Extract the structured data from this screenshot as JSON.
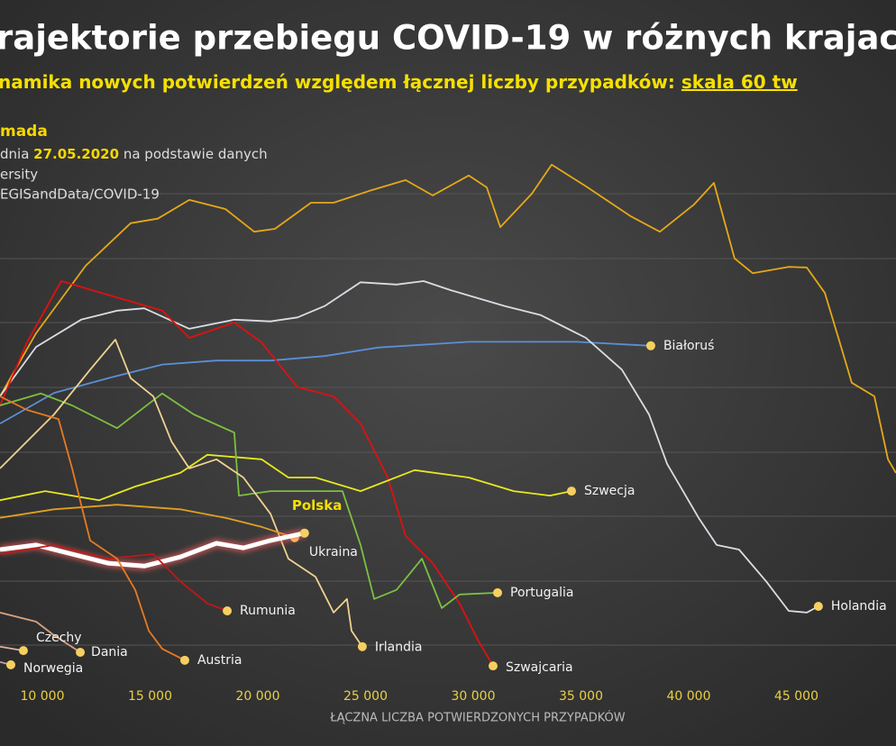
{
  "chart_data": {
    "type": "line",
    "title": "rajektorie przebiegu COVID-19 w różnych krajac",
    "subtitle": "namika nowych potwierdzeń względem łącznej liczby przypadków: ",
    "subtitle_link": "skala 60 tw",
    "notes": {
      "author": "mada",
      "line_prefix": "dnia ",
      "date": "27.05.2020",
      "line_suffix": " na podstawie danych",
      "source_1": "ersity",
      "source_2": "EGISandData/COVID-19"
    },
    "x_label": "ŁĄCZNA LICZBA POTWIERDZONYCH PRZYPADKÓW",
    "xlim": [
      8034,
      49623
    ],
    "ylim": [
      0,
      100
    ],
    "xticks": [
      {
        "value": 10000,
        "label": "10 000"
      },
      {
        "value": 15000,
        "label": "15 000"
      },
      {
        "value": 20000,
        "label": "20 000"
      },
      {
        "value": 25000,
        "label": "25 000"
      },
      {
        "value": 30000,
        "label": "30 000"
      },
      {
        "value": 35000,
        "label": "35 000"
      },
      {
        "value": 40000,
        "label": "40 000"
      },
      {
        "value": 45000,
        "label": "45 000"
      }
    ],
    "series": [
      {
        "color": "#e6a817",
        "x": [
          8034,
          9708,
          12009,
          14100,
          15356,
          16820,
          18494,
          19833,
          20795,
          22469,
          23515,
          25188,
          26862,
          28117,
          29790,
          30627,
          31254,
          32720,
          33640,
          35230,
          37320,
          38660,
          40250,
          41170,
          42130,
          42970,
          44640,
          45480,
          46320,
          46950,
          47570,
          48620,
          49250,
          49620
        ],
        "values": [
          52.4,
          63.5,
          75.4,
          82.9,
          83.7,
          87,
          85.4,
          81.4,
          81.9,
          86.5,
          86.5,
          88.6,
          90.5,
          87.8,
          91.3,
          89.2,
          82.2,
          88.1,
          93.2,
          89.4,
          84.1,
          81.4,
          86.2,
          90,
          76.7,
          74.1,
          75.2,
          75.1,
          70.6,
          62.7,
          54.8,
          52.4,
          41.3,
          38.9
        ]
      },
      {
        "name": "Białoruś",
        "color": "#5b8fd6",
        "x": [
          8034,
          10544,
          13054,
          15565,
          18076,
          20586,
          23100,
          25600,
          29800,
          34800,
          38240
        ],
        "values": [
          47.6,
          53,
          55.6,
          58,
          58.7,
          58.7,
          59.5,
          61,
          62,
          62,
          61.3
        ]
      },
      {
        "name": "Holandia",
        "color": "#d9dde3",
        "x": [
          8034,
          9708,
          11800,
          13470,
          14730,
          16820,
          18910,
          20590,
          21840,
          23100,
          24770,
          26440,
          27700,
          28960,
          31470,
          33140,
          35230,
          36900,
          38160,
          39000,
          40460,
          41300,
          42340,
          43600,
          44640,
          45480,
          46020
        ],
        "values": [
          52.4,
          61.1,
          65.9,
          67.5,
          67.9,
          64.3,
          65.9,
          65.6,
          66.3,
          68.3,
          72.5,
          72.1,
          72.7,
          71.1,
          68.3,
          66.7,
          62.7,
          57.1,
          49.2,
          40.5,
          31,
          26.2,
          25.4,
          19.8,
          14.6,
          14.3,
          15.4
        ]
      },
      {
        "name": "Szwajcaria",
        "color": "#e01010",
        "x": [
          8034,
          9290,
          10880,
          13470,
          15565,
          16820,
          18910,
          20170,
          21840,
          23515,
          24770,
          26030,
          26860,
          28120,
          29370,
          30210,
          30920
        ],
        "values": [
          50.8,
          61.9,
          72.7,
          69.8,
          67.5,
          62.7,
          65.4,
          61.9,
          54,
          52.4,
          47.6,
          38.1,
          27.8,
          23,
          15.9,
          9.5,
          4.9
        ]
      },
      {
        "name": "Szwecja",
        "color": "#e8e820",
        "x": [
          8034,
          10130,
          12640,
          14310,
          16400,
          17660,
          20170,
          21420,
          22680,
          24770,
          27280,
          29790,
          31880,
          33560,
          34560
        ],
        "values": [
          34.1,
          35.7,
          34.1,
          36.5,
          38.9,
          42.1,
          41.3,
          38.1,
          38.1,
          35.7,
          39.4,
          38.1,
          35.7,
          34.9,
          35.7
        ]
      },
      {
        "name": "Portugalia",
        "color": "#7cc040",
        "x": [
          8034,
          9920,
          11380,
          13470,
          15565,
          17030,
          18910,
          19120,
          20590,
          22680,
          23930,
          24770,
          25400,
          26440,
          27620,
          28540,
          29370,
          31130
        ],
        "values": [
          50.8,
          52.9,
          50.8,
          46.8,
          52.9,
          49.2,
          46,
          34.9,
          35.7,
          35.7,
          35.7,
          26.2,
          16.7,
          18.3,
          23.8,
          15.1,
          17.5,
          17.8
        ]
      },
      {
        "name": "Irlandia",
        "color": "#f0d290",
        "x": [
          8034,
          10540,
          12220,
          13390,
          14100,
          15150,
          16000,
          16820,
          18080,
          19330,
          20590,
          21420,
          22680,
          23520,
          24140,
          24350,
          24850
        ],
        "values": [
          39.7,
          49.2,
          57.1,
          62.4,
          55.6,
          52.4,
          44.4,
          39.7,
          41.3,
          38.1,
          31.7,
          23.8,
          20.6,
          14.3,
          16.7,
          11.1,
          8.3
        ]
      },
      {
        "name": "Ukraina",
        "color": "#e0a020",
        "x": [
          8034,
          10540,
          13470,
          16400,
          18490,
          20170,
          21710
        ],
        "values": [
          31,
          32.5,
          33.3,
          32.5,
          31,
          29.4,
          27.5
        ]
      },
      {
        "name": "Polska",
        "color": "#ffffff",
        "x": [
          8034,
          9710,
          11380,
          13050,
          14730,
          16400,
          18080,
          19330,
          20590,
          22170
        ],
        "values": [
          25.4,
          26.2,
          24.6,
          23,
          22.5,
          24.1,
          26.5,
          25.7,
          27,
          28.3
        ]
      },
      {
        "name": "Rumunia",
        "color": "#c01818",
        "x": [
          8034,
          10540,
          13050,
          15150,
          16400,
          17660,
          18580
        ],
        "values": [
          24.6,
          26.2,
          23.8,
          24.6,
          19.8,
          15.9,
          14.6
        ]
      },
      {
        "name": "Austria",
        "color": "#e87a20",
        "x": [
          8034,
          9290,
          10750,
          11380,
          12220,
          13470,
          14310,
          14940,
          15565,
          16610
        ],
        "values": [
          52.4,
          50,
          48.4,
          39.7,
          27,
          23.8,
          18.3,
          11.1,
          7.9,
          5.9
        ]
      },
      {
        "name": "Dania",
        "color": "#d8a080",
        "x": [
          8034,
          9710,
          10540,
          11760
        ],
        "values": [
          14.3,
          12.7,
          10.3,
          7.3
        ]
      },
      {
        "name": "Czechy",
        "color": "#e0b0a0",
        "x": [
          8034,
          9120
        ],
        "values": [
          8.3,
          7.6
        ]
      },
      {
        "name": "Norwegia",
        "color": "#c0a0b0",
        "x": [
          8034,
          8536
        ],
        "values": [
          5.6,
          5.1
        ]
      }
    ]
  }
}
